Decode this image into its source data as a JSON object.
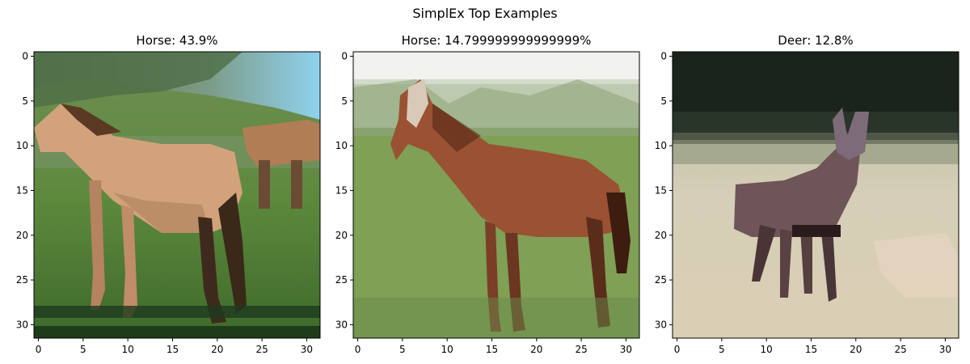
{
  "figure": {
    "suptitle": "SimplEx Top Examples"
  },
  "panels": [
    {
      "title": "Horse: 43.9%",
      "image": "photo of a tan horse standing in a green field with another horse behind it",
      "x_ticks": [
        "0",
        "5",
        "10",
        "15",
        "20",
        "25",
        "30"
      ],
      "y_ticks": [
        "0",
        "5",
        "10",
        "15",
        "20",
        "25",
        "30"
      ]
    },
    {
      "title": "Horse: 14.799999999999999%",
      "image": "photo of a brown horse standing on green grass with trees behind",
      "x_ticks": [
        "0",
        "5",
        "10",
        "15",
        "20",
        "25",
        "30"
      ],
      "y_ticks": [
        "0",
        "5",
        "10",
        "15",
        "20",
        "25",
        "30"
      ]
    },
    {
      "title": "Deer: 12.8%",
      "image": "photo of a grey deer standing in a pale grassy field with dark forest behind",
      "x_ticks": [
        "0",
        "5",
        "10",
        "15",
        "20",
        "25",
        "30"
      ],
      "y_ticks": [
        "0",
        "5",
        "10",
        "15",
        "20",
        "25",
        "30"
      ]
    }
  ],
  "colors": {
    "axes_frame": "#000000",
    "background": "#ffffff"
  }
}
